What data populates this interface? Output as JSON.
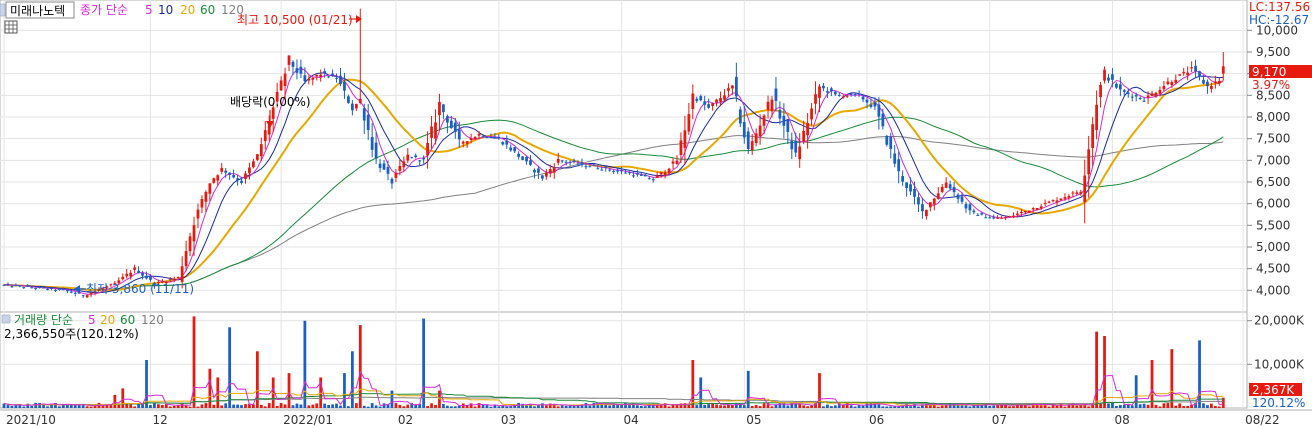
{
  "header": {
    "stock_name": "미래나노텍",
    "price_ma_label": "종가 단순",
    "ma_periods": [
      "5",
      "10",
      "20",
      "60",
      "120"
    ],
    "volume_label": "거래량 단순",
    "volume_ma_periods": [
      "5",
      "20",
      "60",
      "120"
    ],
    "volume_info": "2,366,550주(120.12%)",
    "lc": "LC:137.56",
    "hc": "HC:-12.67"
  },
  "colors": {
    "up": "#e8190e",
    "down": "#1a5fc8",
    "ma5": "#d62ad6",
    "ma10": "#1a2a9a",
    "ma20": "#e8a800",
    "ma60": "#1a8a3a",
    "ma120": "#808080",
    "grid": "#e4e4e4",
    "price_tag_bg": "#e8190e"
  },
  "annotations": {
    "high": "최고 10,500 (01/21)",
    "low": "최저 3,860 (11/11)",
    "dividend": "배당락(0.00%)"
  },
  "current": {
    "price": "9,170",
    "change": "3.97%",
    "volume": "2,367K",
    "volume_ratio": "120.12%"
  },
  "chart_data": [
    {
      "type": "candlestick",
      "title": "",
      "x_tick_labels": [
        "2021/10",
        "12",
        "2022/01",
        "02",
        "03",
        "04",
        "05",
        "06",
        "07",
        "08",
        "08/22"
      ],
      "x_tick_index": [
        0,
        37,
        70,
        99,
        125,
        156,
        187,
        218,
        249,
        280,
        313
      ],
      "y_ticks": [
        "10,000",
        "9,500",
        "9,000",
        "8,500",
        "8,000",
        "7,500",
        "7,000",
        "6,500",
        "6,000",
        "5,500",
        "5,000",
        "4,500",
        "4,000"
      ],
      "ylim": [
        3500,
        10700
      ],
      "anchors": {
        "index": [
          0,
          15,
          20,
          28,
          33,
          38,
          44,
          48,
          52,
          55,
          60,
          64,
          68,
          72,
          76,
          80,
          84,
          88,
          90,
          94,
          98,
          102,
          106,
          110,
          115,
          120,
          125,
          130,
          136,
          140,
          146,
          152,
          158,
          164,
          170,
          174,
          178,
          184,
          188,
          194,
          200,
          206,
          210,
          216,
          220,
          226,
          232,
          238,
          244,
          250,
          254,
          260,
          266,
          272,
          276,
          278,
          282,
          288,
          294,
          300,
          304,
          308
        ],
        "close": [
          4120,
          4000,
          3880,
          4150,
          4500,
          4150,
          4300,
          5600,
          6500,
          6800,
          6500,
          7100,
          8200,
          9300,
          8800,
          9000,
          8900,
          8200,
          8400,
          7000,
          6500,
          7100,
          7000,
          8300,
          7400,
          7600,
          7500,
          7100,
          6600,
          7000,
          6900,
          6800,
          6700,
          6550,
          7000,
          8500,
          8200,
          8700,
          7200,
          8500,
          7100,
          8700,
          8500,
          8500,
          8200,
          6700,
          5800,
          6500,
          5800,
          5650,
          5700,
          5900,
          6100,
          6300,
          8400,
          9000,
          8600,
          8400,
          8800,
          9100,
          8700,
          8900
        ]
      },
      "last": {
        "open": 9000,
        "high": 9500,
        "low": 8850,
        "close": 9170
      },
      "high_point": {
        "index": 90,
        "price": 10500
      },
      "low_point": {
        "index": 18,
        "price": 3860
      }
    },
    {
      "type": "bar",
      "title": "",
      "y_ticks": [
        "20,000K",
        "10,000K"
      ],
      "ylim": [
        0,
        22000
      ],
      "unit": "K",
      "spikes": [
        {
          "index": 28,
          "value": 3000
        },
        {
          "index": 30,
          "value": 4500
        },
        {
          "index": 36,
          "value": 11000
        },
        {
          "index": 48,
          "value": 21000
        },
        {
          "index": 52,
          "value": 9000
        },
        {
          "index": 54,
          "value": 7000
        },
        {
          "index": 57,
          "value": 18500
        },
        {
          "index": 64,
          "value": 13000
        },
        {
          "index": 68,
          "value": 7000
        },
        {
          "index": 72,
          "value": 8000
        },
        {
          "index": 76,
          "value": 20000
        },
        {
          "index": 80,
          "value": 7000
        },
        {
          "index": 86,
          "value": 8000
        },
        {
          "index": 88,
          "value": 13000
        },
        {
          "index": 90,
          "value": 19000
        },
        {
          "index": 98,
          "value": 4000
        },
        {
          "index": 106,
          "value": 20500
        },
        {
          "index": 110,
          "value": 4000
        },
        {
          "index": 174,
          "value": 11000
        },
        {
          "index": 176,
          "value": 7000
        },
        {
          "index": 188,
          "value": 8500
        },
        {
          "index": 206,
          "value": 8000
        },
        {
          "index": 276,
          "value": 17500
        },
        {
          "index": 278,
          "value": 16500
        },
        {
          "index": 286,
          "value": 7500
        },
        {
          "index": 290,
          "value": 11000
        },
        {
          "index": 295,
          "value": 13500
        },
        {
          "index": 302,
          "value": 15500
        }
      ]
    }
  ]
}
